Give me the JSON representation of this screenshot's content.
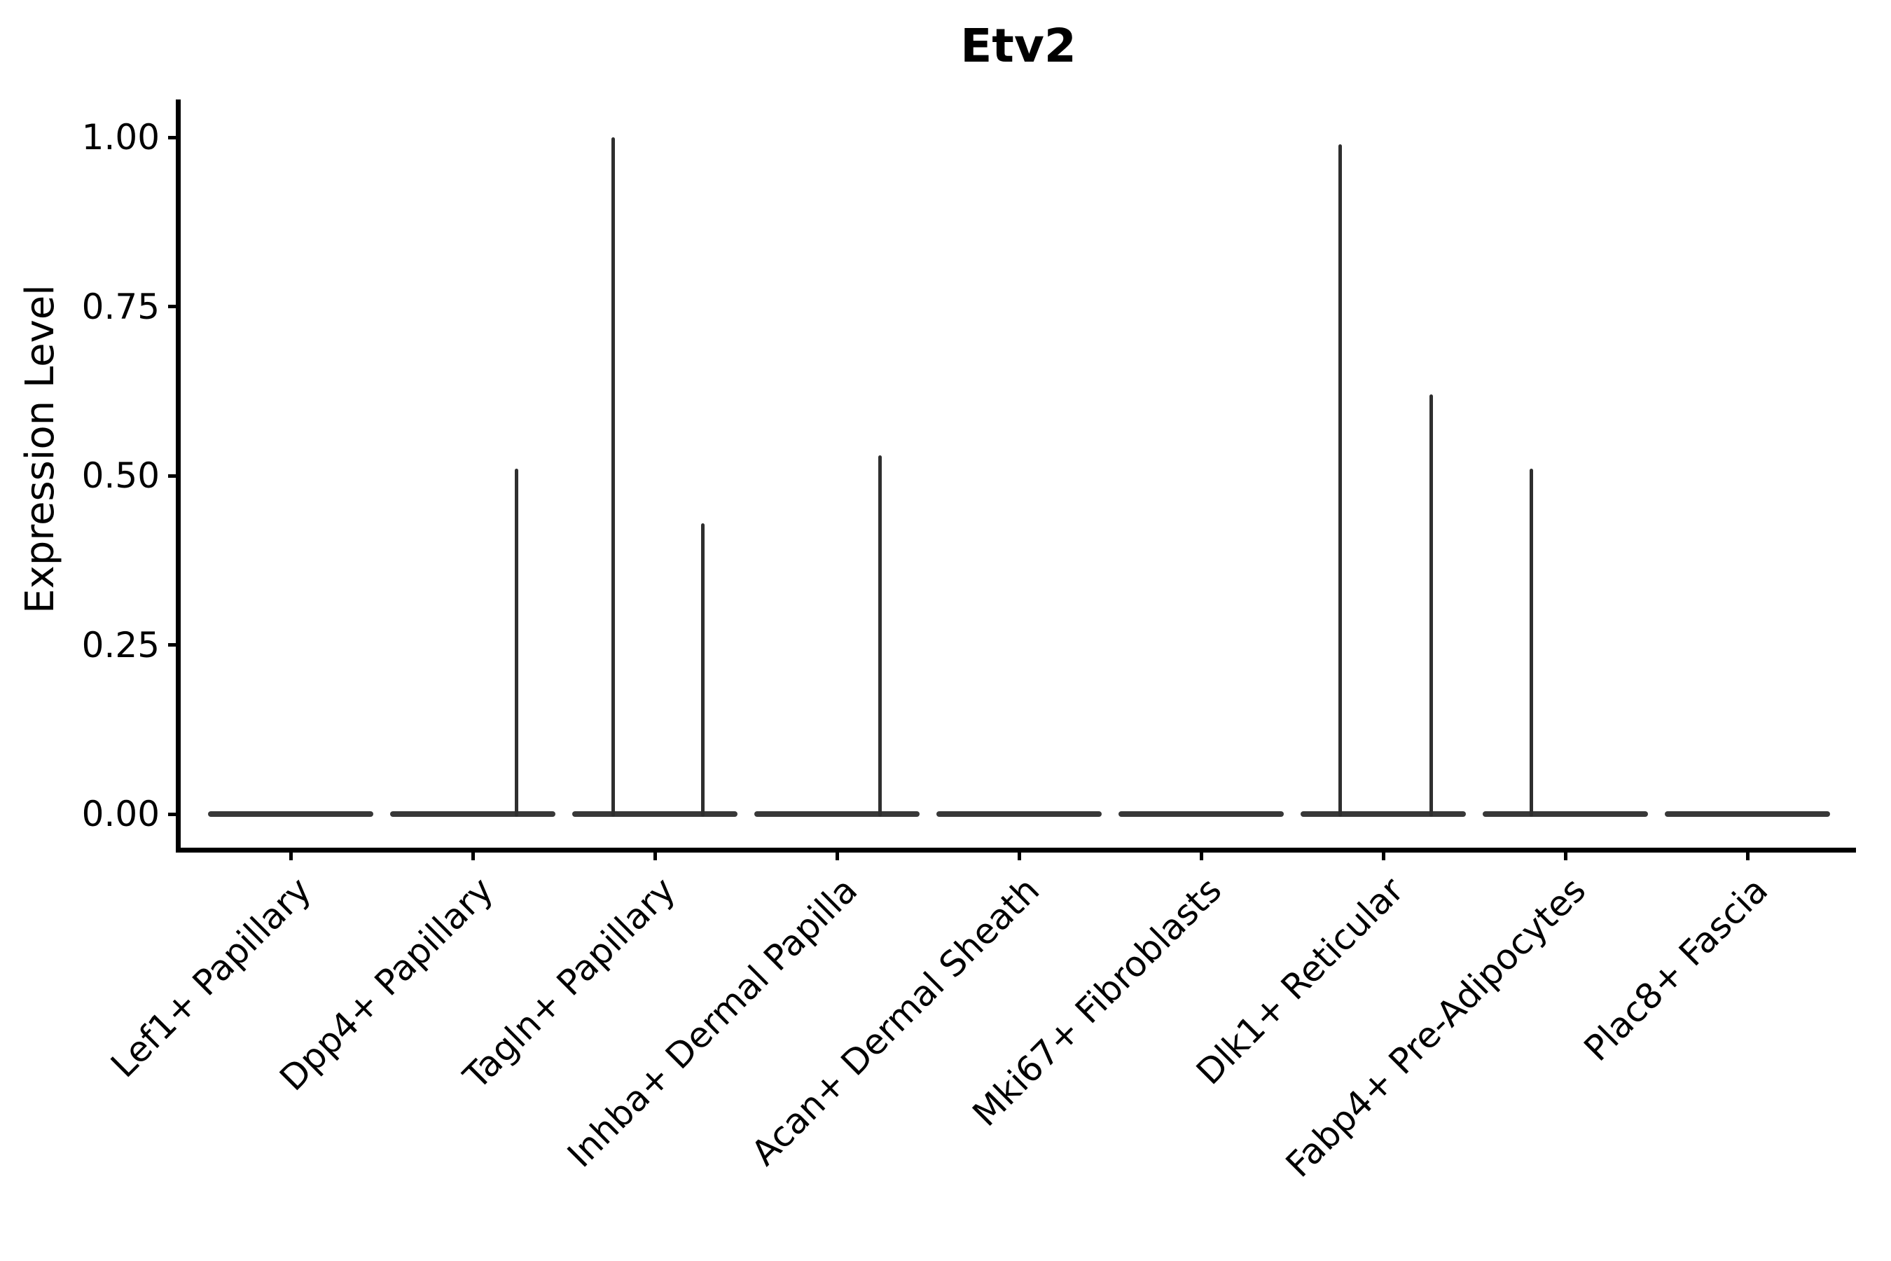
{
  "chart_data": {
    "type": "violin",
    "title": "Etv2",
    "ylabel": "Expression Level",
    "xlabel": "",
    "ylim": [
      0,
      1.0
    ],
    "grid": false,
    "legend": null,
    "yticks": [
      {
        "label": "1.00",
        "value": 1.0
      },
      {
        "label": "0.75",
        "value": 0.75
      },
      {
        "label": "0.50",
        "value": 0.5
      },
      {
        "label": "0.25",
        "value": 0.25
      },
      {
        "label": "0.00",
        "value": 0.0
      }
    ],
    "categories": [
      {
        "name": "Lef1+ Papillary",
        "baseline_value": 0.0,
        "spikes": []
      },
      {
        "name": "Dpp4+ Papillary",
        "baseline_value": 0.0,
        "spikes": [
          {
            "value": 0.51,
            "offset_frac": 0.24
          }
        ]
      },
      {
        "name": "Tagln+ Papillary",
        "baseline_value": 0.0,
        "spikes": [
          {
            "value": 1.0,
            "offset_frac": -0.227
          },
          {
            "value": 0.43,
            "offset_frac": 0.262
          }
        ]
      },
      {
        "name": "Inhba+ Dermal Papilla",
        "baseline_value": 0.0,
        "spikes": [
          {
            "value": 0.53,
            "offset_frac": 0.235
          }
        ]
      },
      {
        "name": "Acan+ Dermal Sheath",
        "baseline_value": 0.0,
        "spikes": []
      },
      {
        "name": "Mki67+ Fibroblasts",
        "baseline_value": 0.0,
        "spikes": []
      },
      {
        "name": "Dlk1+ Reticular",
        "baseline_value": 0.0,
        "spikes": [
          {
            "value": 0.99,
            "offset_frac": -0.235
          },
          {
            "value": 0.62,
            "offset_frac": 0.262
          }
        ]
      },
      {
        "name": "Fabp4+ Pre-Adipocytes",
        "baseline_value": 0.0,
        "spikes": [
          {
            "value": 0.51,
            "offset_frac": -0.188
          }
        ]
      },
      {
        "name": "Plac8+ Fascia",
        "baseline_value": 0.0,
        "spikes": []
      }
    ]
  },
  "colors": {
    "background": "#ffffff",
    "axis": "#000000",
    "text": "#000000",
    "violin_outline": "#383838",
    "spike": "#2f2f2f"
  }
}
